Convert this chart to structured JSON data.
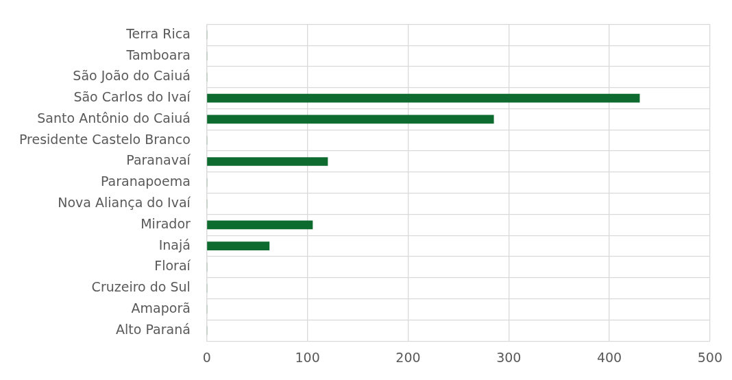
{
  "chart_data": {
    "type": "bar",
    "orientation": "horizontal",
    "categories": [
      "Terra Rica",
      "Tamboara",
      "São João do Caiuá",
      "São Carlos do Ivaí",
      "Santo Antônio do Caiuá",
      "Presidente Castelo Branco",
      "Paranavaí",
      "Paranapoema",
      "Nova Aliança do Ivaí",
      "Mirador",
      "Inajá",
      "Floraí",
      "Cruzeiro do Sul",
      "Amaporã",
      "Alto Paraná"
    ],
    "values": [
      0,
      0,
      0,
      430,
      285,
      0,
      120,
      0,
      0,
      105,
      62,
      0,
      0,
      0,
      0
    ],
    "color": "#0e6b2f",
    "xlim": [
      0,
      500
    ],
    "xticks": [
      0,
      100,
      200,
      300,
      400,
      500
    ],
    "grid": true
  }
}
